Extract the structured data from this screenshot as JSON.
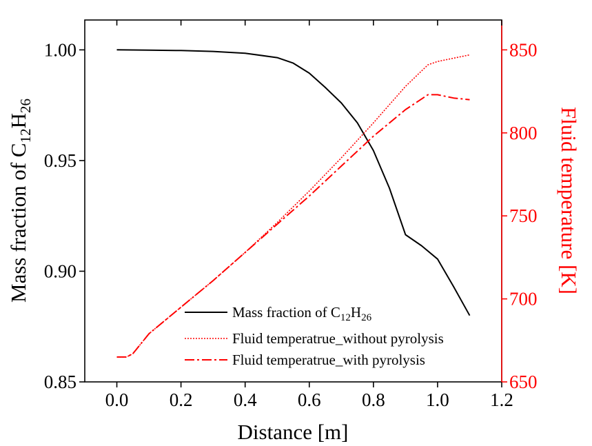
{
  "colors": {
    "primary": "#000000",
    "secondary": "#ff0000"
  },
  "chart_data": {
    "type": "line",
    "x_axis": {
      "label": "Distance [m]",
      "range": [
        -0.1,
        1.2
      ],
      "ticks": [
        0.0,
        0.2,
        0.4,
        0.6,
        0.8,
        1.0,
        1.2
      ],
      "tick_labels": [
        "0.0",
        "0.2",
        "0.4",
        "0.6",
        "0.8",
        "1.0",
        "1.2"
      ]
    },
    "y_axis_left": {
      "label_prefix": "Mass fraction of  C",
      "sub1": "12",
      "mid": "H",
      "sub2": "26",
      "range": [
        0.85,
        1.0135
      ],
      "ticks": [
        0.85,
        0.9,
        0.95,
        1.0
      ],
      "tick_labels": [
        "0.85",
        "0.90",
        "0.95",
        "1.00"
      ]
    },
    "y_axis_right": {
      "label": "Fluid temperature [K]",
      "range": [
        650,
        868
      ],
      "ticks": [
        650,
        700,
        750,
        800,
        850
      ],
      "tick_labels": [
        "650",
        "700",
        "750",
        "800",
        "850"
      ]
    },
    "series": [
      {
        "name": "Mass fraction of C12H26",
        "legend": {
          "prefix": "Mass fraction of C",
          "sub1": "12",
          "mid": "H",
          "sub2": "26"
        },
        "axis": "left",
        "style": "solid",
        "color": "#000000",
        "x": [
          0.0,
          0.1,
          0.2,
          0.3,
          0.4,
          0.5,
          0.55,
          0.6,
          0.65,
          0.7,
          0.75,
          0.8,
          0.85,
          0.9,
          0.95,
          1.0,
          1.05,
          1.1
        ],
        "y": [
          1.0,
          0.9999,
          0.9997,
          0.9993,
          0.9985,
          0.9965,
          0.994,
          0.9895,
          0.983,
          0.976,
          0.967,
          0.9545,
          0.9375,
          0.9165,
          0.9115,
          0.9055,
          0.893,
          0.88
        ]
      },
      {
        "name": "Fluid temperatrue_without pyrolysis",
        "axis": "right",
        "style": "dotted",
        "color": "#ff0000",
        "x": [
          0.0,
          0.03,
          0.05,
          0.1,
          0.2,
          0.3,
          0.4,
          0.5,
          0.6,
          0.7,
          0.8,
          0.9,
          0.97,
          1.0,
          1.05,
          1.1
        ],
        "y": [
          665,
          665,
          667,
          679,
          695,
          711,
          728,
          746,
          765,
          785,
          806,
          828,
          841,
          843,
          845,
          847
        ]
      },
      {
        "name": "Fluid temperatrue_with pyrolysis",
        "axis": "right",
        "style": "dashdot",
        "color": "#ff0000",
        "x": [
          0.0,
          0.03,
          0.05,
          0.1,
          0.2,
          0.3,
          0.4,
          0.5,
          0.6,
          0.7,
          0.8,
          0.9,
          0.97,
          1.0,
          1.05,
          1.1
        ],
        "y": [
          665,
          665,
          667,
          679,
          695,
          711,
          728,
          745,
          762,
          780,
          798,
          814,
          823,
          823,
          821,
          820
        ]
      }
    ],
    "legend_position": "bottom-right"
  }
}
